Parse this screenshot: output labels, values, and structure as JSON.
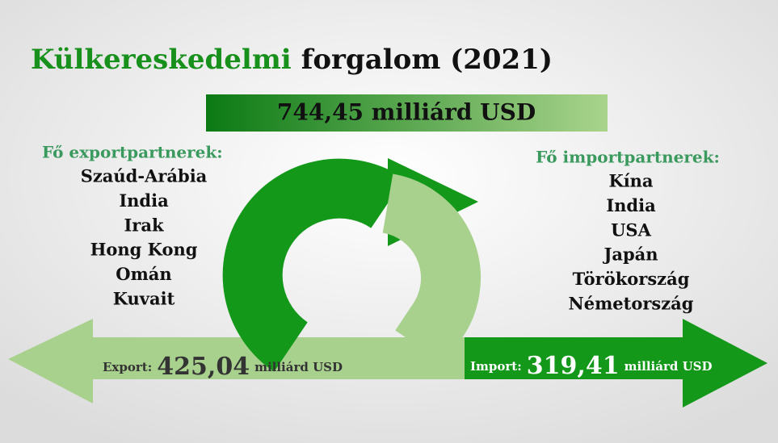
{
  "title": {
    "highlight": "Külkereskedelmi",
    "rest": "forgalom (2021)"
  },
  "total": "744,45 milliárd USD",
  "export_partners": {
    "heading": "Fő exportpartnerek:",
    "items": [
      "Szaúd-Arábia",
      "India",
      "Irak",
      "Hong Kong",
      "Omán",
      "Kuvait"
    ]
  },
  "import_partners": {
    "heading": "Fő importpartnerek:",
    "items": [
      "Kína",
      "India",
      "USA",
      "Japán",
      "Törökország",
      "Németország"
    ]
  },
  "export": {
    "label": "Export:",
    "amount": "425,04",
    "unit": "milliárd USD"
  },
  "import": {
    "label": "Import:",
    "amount": "319,41",
    "unit": "milliárd USD"
  }
}
